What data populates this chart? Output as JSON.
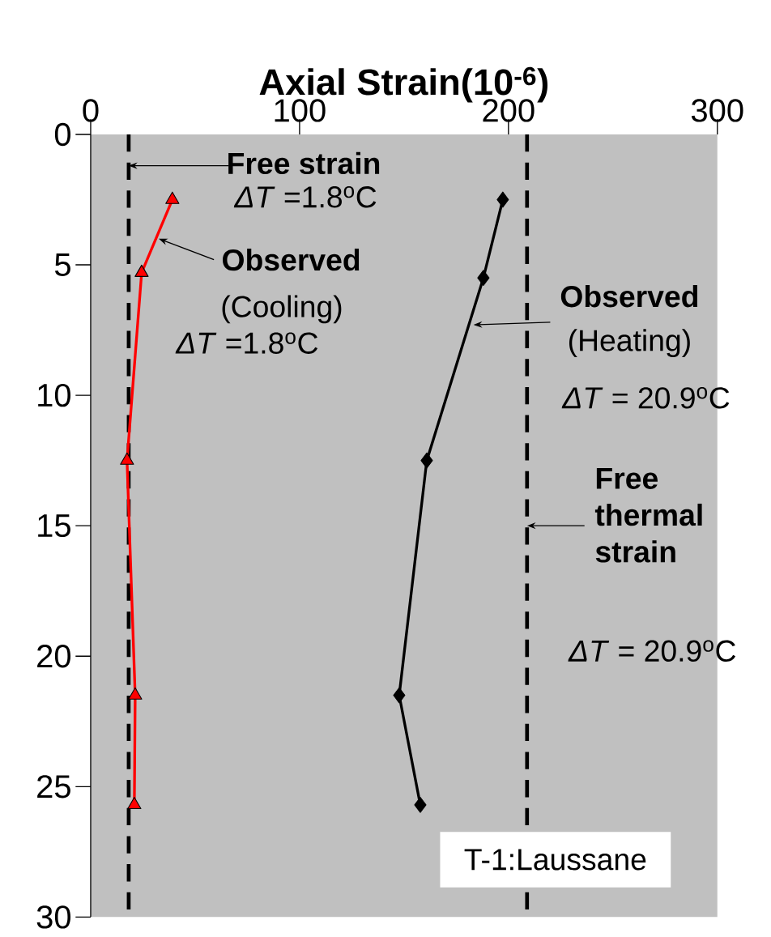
{
  "chart_data": {
    "type": "line",
    "xlabel": "Axial Strain(10$^{-6}$)",
    "series": [
      {
        "color": "#ff0000",
        "marker": "triangle",
        "x": [
          39.1,
          24.4,
          17.4,
          21.3,
          20.9
        ],
        "values": [
          2.5,
          5.3,
          12.5,
          21.5,
          25.7
        ]
      },
      {
        "color": "#000000",
        "marker": "diamond",
        "x": [
          197.3,
          188,
          160.9,
          147.7,
          157.8
        ],
        "values": [
          2.5,
          5.5,
          12.5,
          21.5,
          25.7
        ]
      }
    ],
    "xlim": [
      0,
      300
    ],
    "xticks": [
      0,
      100,
      200,
      300
    ],
    "ylim": [
      30,
      0
    ],
    "yticks": [
      0,
      5,
      10,
      15,
      20,
      25,
      30
    ],
    "ref_lines": [
      {
        "axis": "x",
        "value": 18.2,
        "color": "#000000",
        "line_style": "dashed"
      },
      {
        "axis": "x",
        "value": 208.9,
        "color": "#000000",
        "line_style": "dashed"
      }
    ],
    "annotations": [
      "Free strain",
      "*ΔT* =1.8$^{o}$C",
      {
        "text": "Observed",
        "x": 32.6,
        "y": 4.0
      },
      "(Cooling)",
      "*ΔT* =1.8$^{o}$C",
      {
        "text": "Observed",
        "x": 183.3,
        "y": 7.3
      },
      "(Heating)",
      "*ΔT* = 20.9$^{o}$C",
      {
        "text": "Free thermal strain",
        "x": 208.9,
        "y": 15
      },
      "*ΔT* = 20.9$^{o}$C",
      "T-1:Laussane"
    ],
    "grid": false
  }
}
